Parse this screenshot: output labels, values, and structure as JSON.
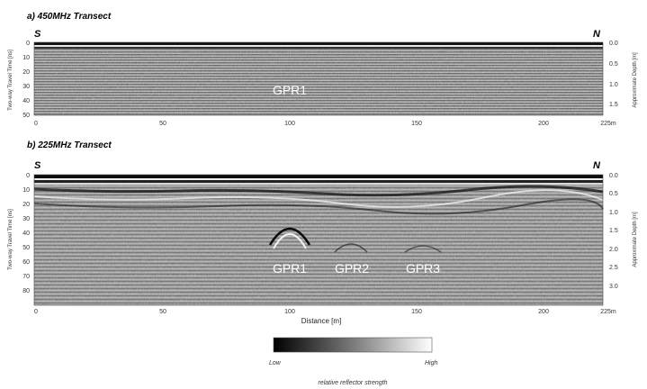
{
  "panel_a": {
    "title": "a)  450MHz Transect",
    "dir_left": "S",
    "dir_right": "N",
    "left_axis_label": "Two-way Travel Time [ns]",
    "right_axis_label": "Approximate Depth [m]",
    "left_ticks": [
      "0",
      "10",
      "20",
      "30",
      "40",
      "50"
    ],
    "right_ticks": [
      "0.0",
      "0.5",
      "1.0",
      "1.5"
    ],
    "x_ticks": [
      "0",
      "50",
      "100",
      "150",
      "200",
      "225m"
    ],
    "markers": [
      "GPR1"
    ]
  },
  "panel_b": {
    "title": "b)  225MHz Transect",
    "dir_left": "S",
    "dir_right": "N",
    "left_axis_label": "Two-way Travel Time [ns]",
    "right_axis_label": "Approximate Depth [m]",
    "left_ticks": [
      "0",
      "10",
      "20",
      "30",
      "40",
      "50",
      "60",
      "70",
      "80"
    ],
    "right_ticks": [
      "0.0",
      "0.5",
      "1.0",
      "1.5",
      "2.0",
      "2.5",
      "3.0"
    ],
    "x_ticks": [
      "0",
      "50",
      "100",
      "150",
      "200",
      "225m"
    ],
    "x_label": "Distance [m]",
    "markers": [
      "GPR1",
      "GPR2",
      "GPR3"
    ]
  },
  "legend": {
    "low": "Low",
    "high": "High",
    "caption": "relative reflector strength"
  }
}
